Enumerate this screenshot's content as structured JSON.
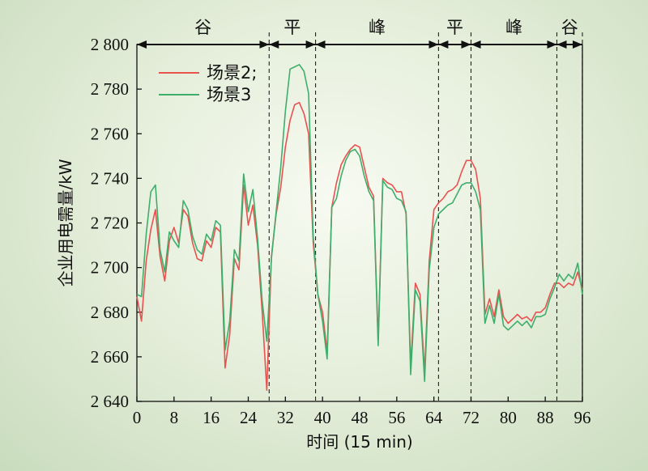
{
  "chart_data": {
    "type": "line",
    "xlabel": "时间 (15 min)",
    "ylabel": "企业用电需量/kW",
    "xlim": [
      0,
      96
    ],
    "ylim": [
      2640,
      2800
    ],
    "xticks": [
      0,
      8,
      16,
      24,
      32,
      40,
      48,
      56,
      64,
      72,
      80,
      88,
      96
    ],
    "yticks": [
      2640,
      2660,
      2680,
      2700,
      2720,
      2740,
      2760,
      2780,
      2800
    ],
    "ytick_labels": [
      "2 640",
      "2 660",
      "2 680",
      "2 700",
      "2 720",
      "2 740",
      "2 760",
      "2 780",
      "2 800"
    ],
    "legend_position": "top-left",
    "period_boundaries": [
      28.5,
      38.5,
      65,
      72,
      90.5,
      96
    ],
    "periods": [
      {
        "label": "谷",
        "start": 0,
        "end": 28.5
      },
      {
        "label": "平",
        "start": 28.5,
        "end": 38.5
      },
      {
        "label": "峰",
        "start": 38.5,
        "end": 65
      },
      {
        "label": "平",
        "start": 65,
        "end": 72
      },
      {
        "label": "峰",
        "start": 72,
        "end": 90.5
      },
      {
        "label": "谷",
        "start": 90.5,
        "end": 96
      }
    ],
    "x": [
      0,
      1,
      2,
      3,
      4,
      5,
      6,
      7,
      8,
      9,
      10,
      11,
      12,
      13,
      14,
      15,
      16,
      17,
      18,
      19,
      20,
      21,
      22,
      23,
      24,
      25,
      26,
      27,
      28,
      29,
      30,
      31,
      32,
      33,
      34,
      35,
      36,
      37,
      38,
      39,
      40,
      41,
      42,
      43,
      44,
      45,
      46,
      47,
      48,
      49,
      50,
      51,
      52,
      53,
      54,
      55,
      56,
      57,
      58,
      59,
      60,
      61,
      62,
      63,
      64,
      65,
      66,
      67,
      68,
      69,
      70,
      71,
      72,
      73,
      74,
      75,
      76,
      77,
      78,
      79,
      80,
      81,
      82,
      83,
      84,
      85,
      86,
      87,
      88,
      89,
      90,
      91,
      92,
      93,
      94,
      95,
      96
    ],
    "series": [
      {
        "name": "场景2;",
        "color": "#e8524f",
        "values": [
          2687,
          2676,
          2703,
          2717,
          2726,
          2705,
          2694,
          2712,
          2718,
          2711,
          2726,
          2723,
          2711,
          2704,
          2703,
          2712,
          2709,
          2718,
          2716,
          2655,
          2670,
          2704,
          2699,
          2737,
          2719,
          2728,
          2710,
          2680,
          2645,
          2705,
          2724,
          2736,
          2754,
          2766,
          2773,
          2774,
          2769,
          2760,
          2711,
          2688,
          2680,
          2662,
          2727,
          2738,
          2746,
          2750,
          2753,
          2755,
          2754,
          2745,
          2736,
          2732,
          2667,
          2740,
          2738,
          2737,
          2734,
          2734,
          2724,
          2656,
          2693,
          2688,
          2653,
          2703,
          2726,
          2729,
          2731,
          2734,
          2735,
          2737,
          2743,
          2748,
          2748,
          2744,
          2731,
          2679,
          2686,
          2678,
          2690,
          2678,
          2675,
          2677,
          2679,
          2677,
          2678,
          2676,
          2680,
          2680,
          2682,
          2688,
          2693,
          2693,
          2691,
          2693,
          2692,
          2698,
          2690
        ]
      },
      {
        "name": "场景3",
        "color": "#3fae6b",
        "values": [
          2688,
          2687,
          2715,
          2734,
          2737,
          2708,
          2698,
          2716,
          2712,
          2709,
          2730,
          2726,
          2714,
          2708,
          2706,
          2715,
          2712,
          2721,
          2719,
          2663,
          2676,
          2708,
          2703,
          2742,
          2725,
          2735,
          2713,
          2685,
          2667,
          2704,
          2725,
          2745,
          2770,
          2789,
          2790,
          2791,
          2788,
          2778,
          2714,
          2688,
          2676,
          2659,
          2727,
          2731,
          2741,
          2748,
          2752,
          2753,
          2750,
          2741,
          2734,
          2730,
          2665,
          2739,
          2736,
          2735,
          2731,
          2730,
          2725,
          2652,
          2690,
          2685,
          2649,
          2699,
          2718,
          2724,
          2726,
          2728,
          2729,
          2733,
          2737,
          2738,
          2738,
          2734,
          2726,
          2675,
          2683,
          2675,
          2688,
          2674,
          2672,
          2674,
          2676,
          2674,
          2676,
          2673,
          2678,
          2678,
          2679,
          2686,
          2691,
          2697,
          2694,
          2697,
          2695,
          2702,
          2688
        ]
      }
    ]
  }
}
